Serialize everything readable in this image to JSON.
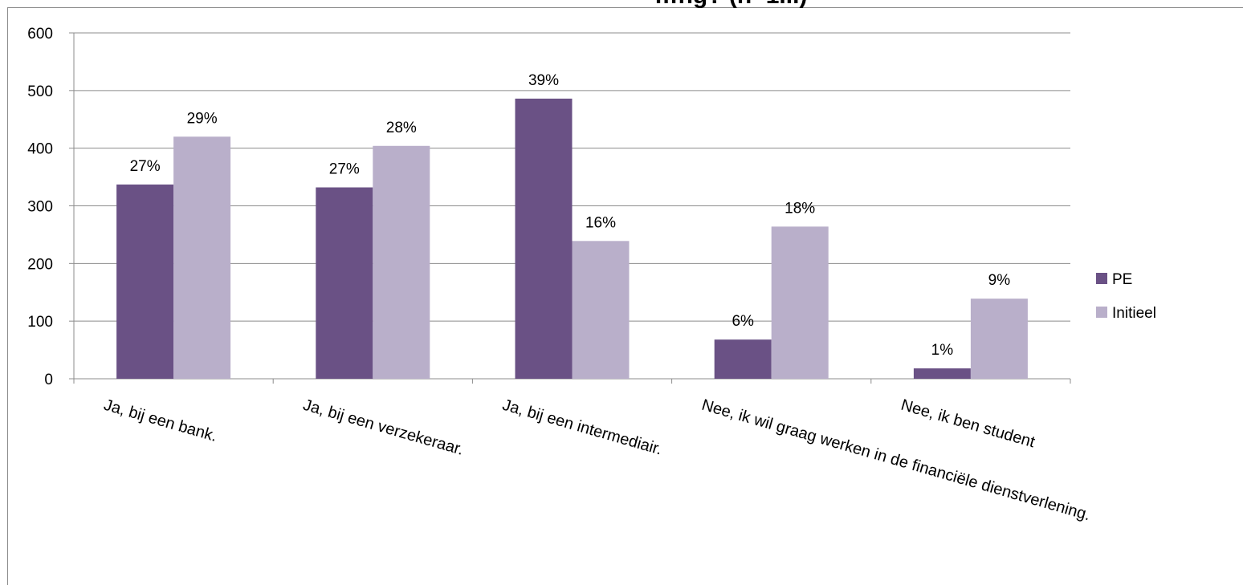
{
  "chart_data": {
    "type": "bar",
    "title": "…ng? (n=1...)",
    "categories": [
      "Ja, bij een bank.",
      "Ja, bij een verzekeraar.",
      "Ja, bij een intermediair.",
      "Nee, ik wil graag werken in de financiële dienstverlening.",
      "Nee, ik ben student"
    ],
    "series": [
      {
        "name": "PE",
        "color": "#6a5185",
        "values": [
          337,
          332,
          486,
          68,
          18
        ],
        "labels": [
          "27%",
          "27%",
          "39%",
          "6%",
          "1%"
        ]
      },
      {
        "name": "Initieel",
        "color": "#b9afca",
        "values": [
          420,
          404,
          239,
          264,
          139
        ],
        "labels": [
          "29%",
          "28%",
          "16%",
          "18%",
          "9%"
        ]
      }
    ],
    "ylim": [
      0,
      600
    ],
    "yticks": [
      0,
      100,
      200,
      300,
      400,
      500,
      600
    ],
    "grid": true,
    "legend": "right",
    "xlabel": "",
    "ylabel": ""
  }
}
